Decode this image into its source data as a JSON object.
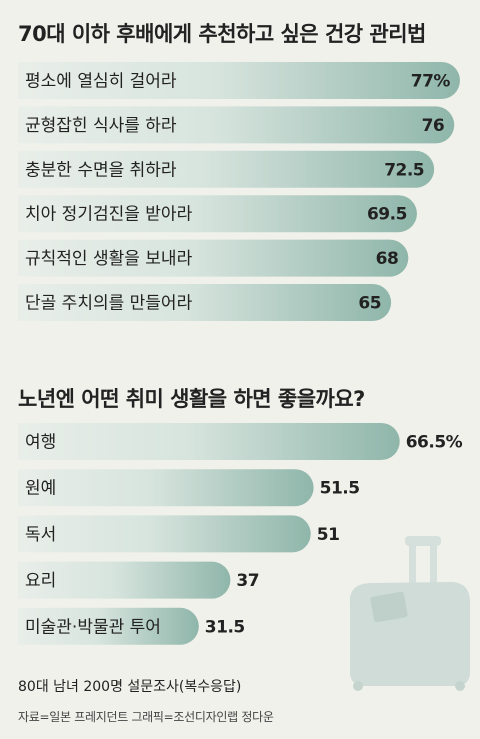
{
  "chart_data": [
    {
      "type": "bar",
      "title": "70대 이하 후배에게 추천하고 싶은 건강 관리법",
      "categories": [
        "평소에 열심히 걸어라",
        "균형잡힌 식사를 하라",
        "충분한 수면을 취하라",
        "치아 정기검진을 받아라",
        "규칙적인 생활을 보내라",
        "단골 주치의를 만들어라"
      ],
      "values": [
        77,
        76,
        72.5,
        69.5,
        68,
        65
      ],
      "labels": [
        "77%",
        "76",
        "72.5",
        "69.5",
        "68",
        "65"
      ],
      "value_label_position": "inside"
    },
    {
      "type": "bar",
      "title": "노년엔 어떤 취미 생활을 하면 좋을까요?",
      "categories": [
        "여행",
        "원예",
        "독서",
        "요리",
        "미술관·박물관 투어"
      ],
      "values": [
        66.5,
        51.5,
        51,
        37,
        31.5
      ],
      "labels": [
        "66.5%",
        "51.5",
        "51",
        "37",
        "31.5"
      ],
      "value_label_position": "outside"
    }
  ],
  "footer": {
    "note": "80대 남녀 200명 설문조사(복수응답)",
    "source": "자료=일본 프레지던트  그래픽=조선디자인랩 정다운"
  },
  "colors": {
    "background": "#f1f1ec",
    "bar_light": "#e9eee9",
    "bar_dark": "#8fb6aa",
    "suitcase": "#cfdcd7"
  },
  "decoration": "suitcase-illustration"
}
